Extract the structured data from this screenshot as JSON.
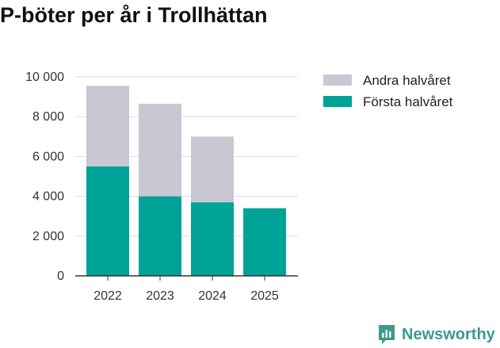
{
  "title": "P-böter per år i Trollhättan",
  "brand": {
    "name": "Newsworthy",
    "icon": "newsworthy-logo-icon"
  },
  "colors": {
    "first_half": "#00a398",
    "second_half": "#c8c8d2",
    "grid": "#dddddd",
    "axis": "#333333"
  },
  "chart_data": {
    "type": "bar",
    "stacked": true,
    "categories": [
      "2022",
      "2023",
      "2024",
      "2025"
    ],
    "series": [
      {
        "name": "Första halvåret",
        "values": [
          5500,
          4000,
          3700,
          3400
        ]
      },
      {
        "name": "Andra halvåret",
        "values": [
          4050,
          4650,
          3300,
          0
        ]
      }
    ],
    "ylim": [
      0,
      10000
    ],
    "yticks": [
      0,
      2000,
      4000,
      6000,
      8000,
      10000
    ],
    "ytick_labels": [
      "0",
      "2 000",
      "4 000",
      "6 000",
      "8 000",
      "10 000"
    ],
    "legend_entries": [
      "Andra halvåret",
      "Första halvåret"
    ],
    "legend_position": "right",
    "grid": true
  }
}
